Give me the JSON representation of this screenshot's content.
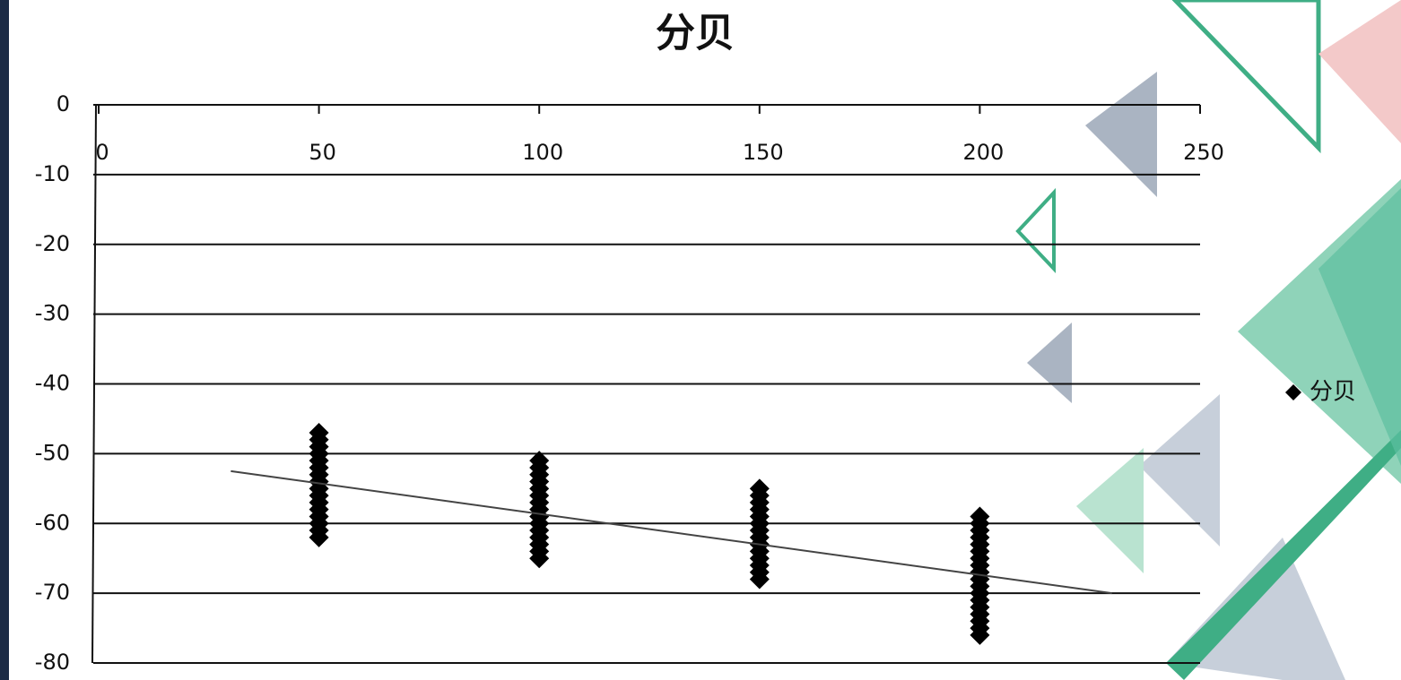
{
  "chart_data": {
    "type": "scatter",
    "title": "分贝",
    "xlim": [
      0,
      250
    ],
    "xticks": [
      0,
      50,
      100,
      150,
      200,
      250
    ],
    "ylim": [
      -80,
      0
    ],
    "yticks": [
      0,
      -10,
      -20,
      -30,
      -40,
      -50,
      -60,
      -70,
      -80
    ],
    "grid": true,
    "legend": "right",
    "series": [
      {
        "name": "分贝",
        "color": "#000000",
        "x": [
          50,
          50,
          50,
          50,
          50,
          50,
          50,
          50,
          50,
          50,
          50,
          50,
          50,
          50,
          50,
          50,
          100,
          100,
          100,
          100,
          100,
          100,
          100,
          100,
          100,
          100,
          100,
          100,
          100,
          100,
          100,
          150,
          150,
          150,
          150,
          150,
          150,
          150,
          150,
          150,
          150,
          150,
          150,
          150,
          150,
          200,
          200,
          200,
          200,
          200,
          200,
          200,
          200,
          200,
          200,
          200,
          200,
          200,
          200,
          200,
          200,
          200,
          200
        ],
        "values": [
          -47,
          -48,
          -49,
          -50,
          -51,
          -52,
          -53,
          -54,
          -55,
          -56,
          -57,
          -58,
          -59,
          -60,
          -61,
          -62,
          -51,
          -52,
          -53,
          -54,
          -55,
          -56,
          -57,
          -58,
          -59,
          -60,
          -61,
          -62,
          -63,
          -64,
          -65,
          -55,
          -56,
          -57,
          -58,
          -59,
          -60,
          -61,
          -62,
          -63,
          -64,
          -65,
          -66,
          -67,
          -68,
          -59,
          -60,
          -61,
          -62,
          -63,
          -64,
          -65,
          -66,
          -67,
          -68,
          -69,
          -70,
          -71,
          -72,
          -73,
          -74,
          -75,
          -76
        ]
      }
    ],
    "trendline": {
      "x": [
        30,
        230
      ],
      "values": [
        -52.5,
        -70
      ],
      "color": "#444444"
    }
  }
}
